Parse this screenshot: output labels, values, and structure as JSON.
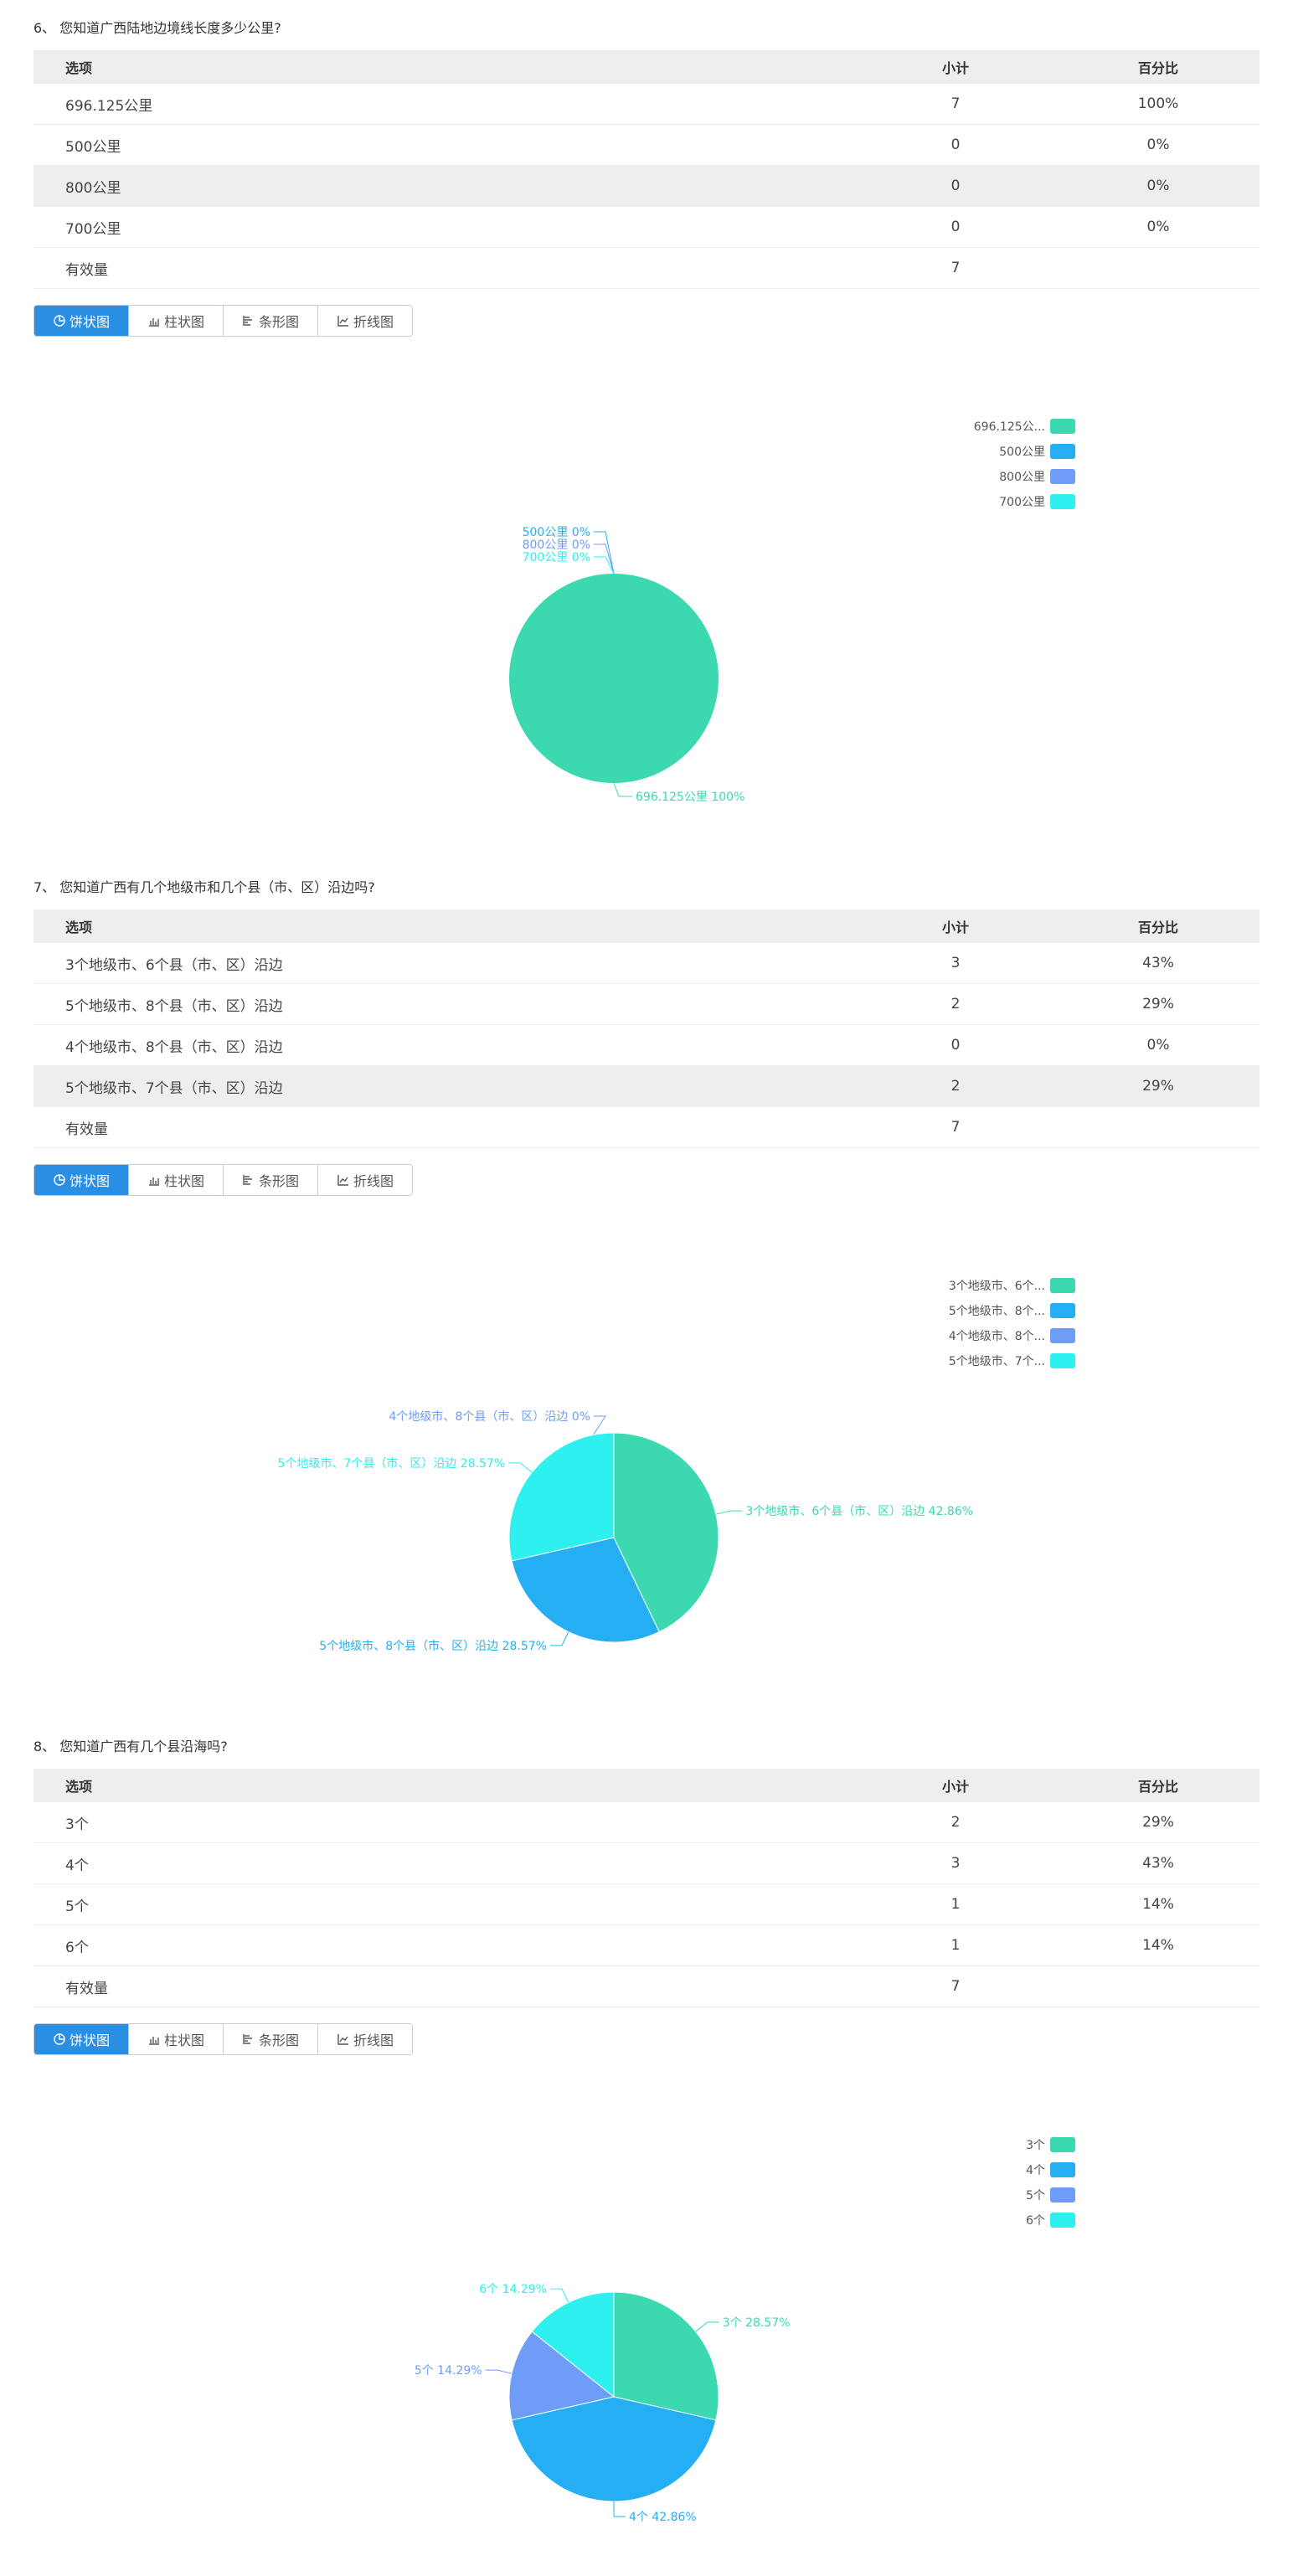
{
  "table_headers": {
    "option": "选项",
    "count": "小计",
    "percent": "百分比"
  },
  "buttons": [
    "饼状图",
    "柱状图",
    "条形图",
    "折线图"
  ],
  "questions": [
    {
      "title": "6、 您知道广西陆地边境线长度多少公里?",
      "rows": [
        {
          "option": "696.125公里",
          "count": "7",
          "percent": "100%"
        },
        {
          "option": "500公里",
          "count": "0",
          "percent": "0%"
        },
        {
          "option": "800公里",
          "count": "0",
          "percent": "0%"
        },
        {
          "option": "700公里",
          "count": "0",
          "percent": "0%"
        }
      ],
      "valid_label": "有效量",
      "valid_count": "7",
      "highlighted_row": 2,
      "legend": [
        "696.125公...",
        "500公里",
        "800公里",
        "700公里"
      ],
      "chart_data": {
        "type": "pie",
        "categories": [
          "696.125公里",
          "500公里",
          "800公里",
          "700公里"
        ],
        "values": [
          7,
          0,
          0,
          0
        ],
        "slice_labels": [
          "696.125公里 100%",
          "500公里 0%",
          "800公里 0%",
          "700公里 0%"
        ]
      }
    },
    {
      "title": "7、 您知道广西有几个地级市和几个县（市、区）沿边吗?",
      "rows": [
        {
          "option": "3个地级市、6个县（市、区）沿边",
          "count": "3",
          "percent": "43%"
        },
        {
          "option": "5个地级市、8个县（市、区）沿边",
          "count": "2",
          "percent": "29%"
        },
        {
          "option": "4个地级市、8个县（市、区）沿边",
          "count": "0",
          "percent": "0%"
        },
        {
          "option": "5个地级市、7个县（市、区）沿边",
          "count": "2",
          "percent": "29%"
        }
      ],
      "valid_label": "有效量",
      "valid_count": "7",
      "highlighted_row": 3,
      "legend": [
        "3个地级市、6个...",
        "5个地级市、8个...",
        "4个地级市、8个...",
        "5个地级市、7个..."
      ],
      "chart_data": {
        "type": "pie",
        "categories": [
          "3个地级市、6个县（市、区）沿边",
          "5个地级市、8个县（市、区）沿边",
          "4个地级市、8个县（市、区）沿边",
          "5个地级市、7个县（市、区）沿边"
        ],
        "values": [
          3,
          2,
          0,
          2
        ],
        "slice_labels": [
          "3个地级市、6个县（市、区）沿边 42.86%",
          "5个地级市、8个县（市、区）沿边 28.57%",
          "4个地级市、8个县（市、区）沿边 0%",
          "5个地级市、7个县（市、区）沿边 28.57%"
        ]
      }
    },
    {
      "title": "8、 您知道广西有几个县沿海吗?",
      "rows": [
        {
          "option": "3个",
          "count": "2",
          "percent": "29%"
        },
        {
          "option": "4个",
          "count": "3",
          "percent": "43%"
        },
        {
          "option": "5个",
          "count": "1",
          "percent": "14%"
        },
        {
          "option": "6个",
          "count": "1",
          "percent": "14%"
        }
      ],
      "valid_label": "有效量",
      "valid_count": "7",
      "highlighted_row": -1,
      "legend": [
        "3个",
        "4个",
        "5个",
        "6个"
      ],
      "chart_data": {
        "type": "pie",
        "categories": [
          "3个",
          "4个",
          "5个",
          "6个"
        ],
        "values": [
          2,
          3,
          1,
          1
        ],
        "slice_labels": [
          "3个 28.57%",
          "4个 42.86%",
          "5个 14.29%",
          "6个 14.29%"
        ]
      }
    }
  ],
  "colors": [
    "#3cd8b0",
    "#26aef2",
    "#6f9cf6",
    "#2ef0ee"
  ]
}
